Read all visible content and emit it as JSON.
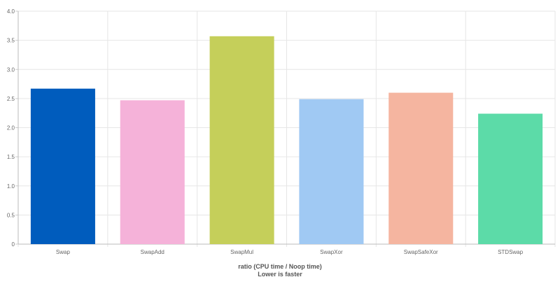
{
  "chart_data": {
    "type": "bar",
    "categories": [
      "Swap",
      "SwapAdd",
      "SwapMul",
      "SwapXor",
      "SwapSafeXor",
      "STDSwap"
    ],
    "values": [
      2.67,
      2.47,
      3.57,
      2.49,
      2.6,
      2.24
    ],
    "colors": [
      "#005cbd",
      "#f5b2d9",
      "#c5cf5a",
      "#a0c9f3",
      "#f5b5a0",
      "#5cdba8"
    ],
    "ylim": [
      0,
      4
    ],
    "yticks": [
      "0",
      "0.5",
      "1.0",
      "1.5",
      "2.0",
      "2.5",
      "3.0",
      "3.5",
      "4.0"
    ],
    "xlabel_line1": "ratio (CPU time / Noop time)",
    "xlabel_line2": "Lower is faster",
    "grid": true,
    "legend": "none"
  }
}
